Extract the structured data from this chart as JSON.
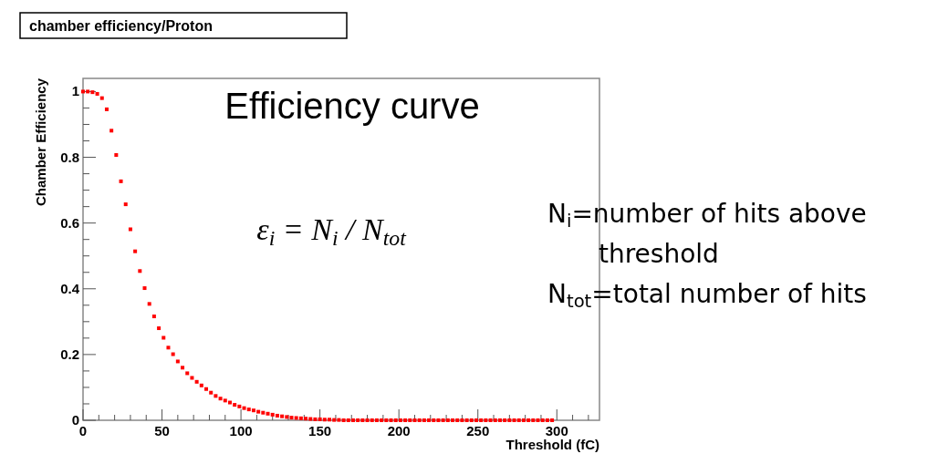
{
  "chart_data": {
    "type": "scatter",
    "title": "chamber efficiency/Proton",
    "xlabel": "Threshold (fC)",
    "ylabel": "Chamber Efficiency",
    "marker": "square",
    "grid": false,
    "xlim": [
      0,
      327
    ],
    "xticks": [
      0,
      50,
      100,
      150,
      200,
      250,
      300
    ],
    "ylim": [
      0,
      1.04
    ],
    "yticks": [
      0,
      0.2,
      0.4,
      0.6,
      0.8,
      1
    ],
    "annotations": [
      "Efficiency curve",
      "ε$_{i}$ = N$_{i}$ / N$_{tot}$",
      "N$_{i}$=number of hits above threshold",
      "N$_{tot}$=total number of hits"
    ],
    "x": [
      0,
      3,
      6,
      9,
      12,
      15,
      18,
      21,
      24,
      27,
      30,
      33,
      36,
      39,
      42,
      45,
      48,
      51,
      54,
      57,
      60,
      63,
      66,
      69,
      72,
      75,
      78,
      81,
      84,
      87,
      90,
      93,
      96,
      99,
      102,
      105,
      108,
      111,
      114,
      117,
      120,
      123,
      126,
      129,
      132,
      135,
      138,
      141,
      144,
      147,
      150,
      153,
      156,
      159,
      162,
      165,
      168,
      171,
      174,
      177,
      180,
      183,
      186,
      189,
      192,
      195,
      198,
      201,
      204,
      207,
      210,
      213,
      216,
      219,
      222,
      225,
      228,
      231,
      234,
      237,
      240,
      243,
      246,
      249,
      252,
      255,
      258,
      261,
      264,
      267,
      270,
      273,
      276,
      279,
      282,
      285,
      288,
      291,
      294,
      297
    ],
    "series": [
      {
        "color": "#ff0000",
        "values": [
          1.0,
          1.0,
          0.998,
          0.993,
          0.98,
          0.946,
          0.881,
          0.807,
          0.727,
          0.657,
          0.581,
          0.514,
          0.454,
          0.402,
          0.354,
          0.316,
          0.28,
          0.251,
          0.221,
          0.201,
          0.179,
          0.16,
          0.143,
          0.129,
          0.117,
          0.106,
          0.095,
          0.084,
          0.074,
          0.066,
          0.06,
          0.054,
          0.047,
          0.042,
          0.037,
          0.033,
          0.03,
          0.026,
          0.023,
          0.02,
          0.017,
          0.014,
          0.012,
          0.01,
          0.008,
          0.007,
          0.006,
          0.005,
          0.004,
          0.003,
          0.003,
          0.002,
          0.002,
          0.001,
          0.001,
          0,
          0,
          0,
          0,
          0,
          0,
          0,
          0,
          0,
          0,
          0,
          0,
          0,
          0,
          0,
          0,
          0,
          0,
          0,
          0,
          0,
          0,
          0,
          0,
          0,
          0,
          0,
          0,
          0,
          0,
          0,
          0,
          0,
          0,
          0,
          0,
          0,
          0,
          0,
          0,
          0,
          0,
          0,
          0,
          0
        ]
      }
    ]
  }
}
